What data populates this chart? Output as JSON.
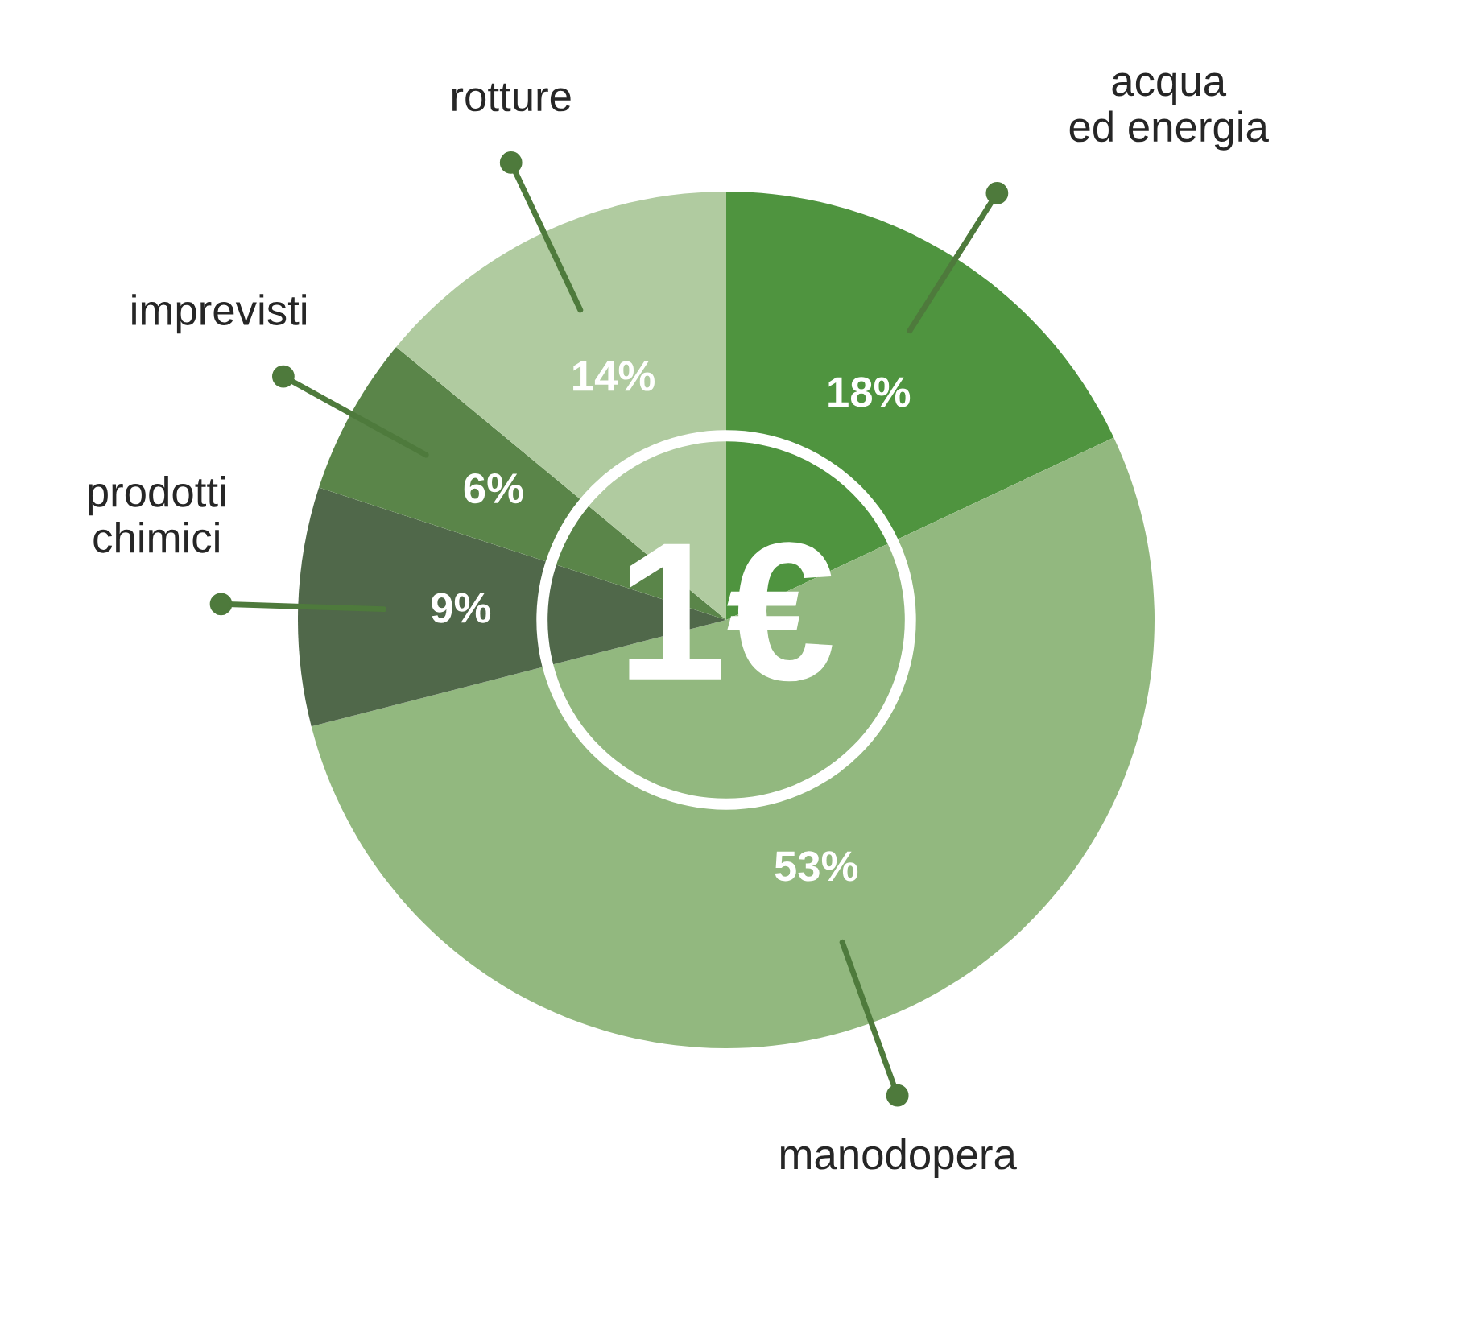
{
  "chart_data": {
    "type": "pie",
    "categories": [
      "acqua\ned energia",
      "manodopera",
      "prodotti\nchimici",
      "imprevisti",
      "rotture"
    ],
    "values": [
      18,
      53,
      9,
      6,
      14
    ],
    "value_labels": [
      "18%",
      "53%",
      "9%",
      "6%",
      "14%"
    ],
    "colors": [
      "#4f943f",
      "#92b87f",
      "#50684a",
      "#5a8549",
      "#b0cba0"
    ],
    "annotations": [
      "1€"
    ]
  }
}
